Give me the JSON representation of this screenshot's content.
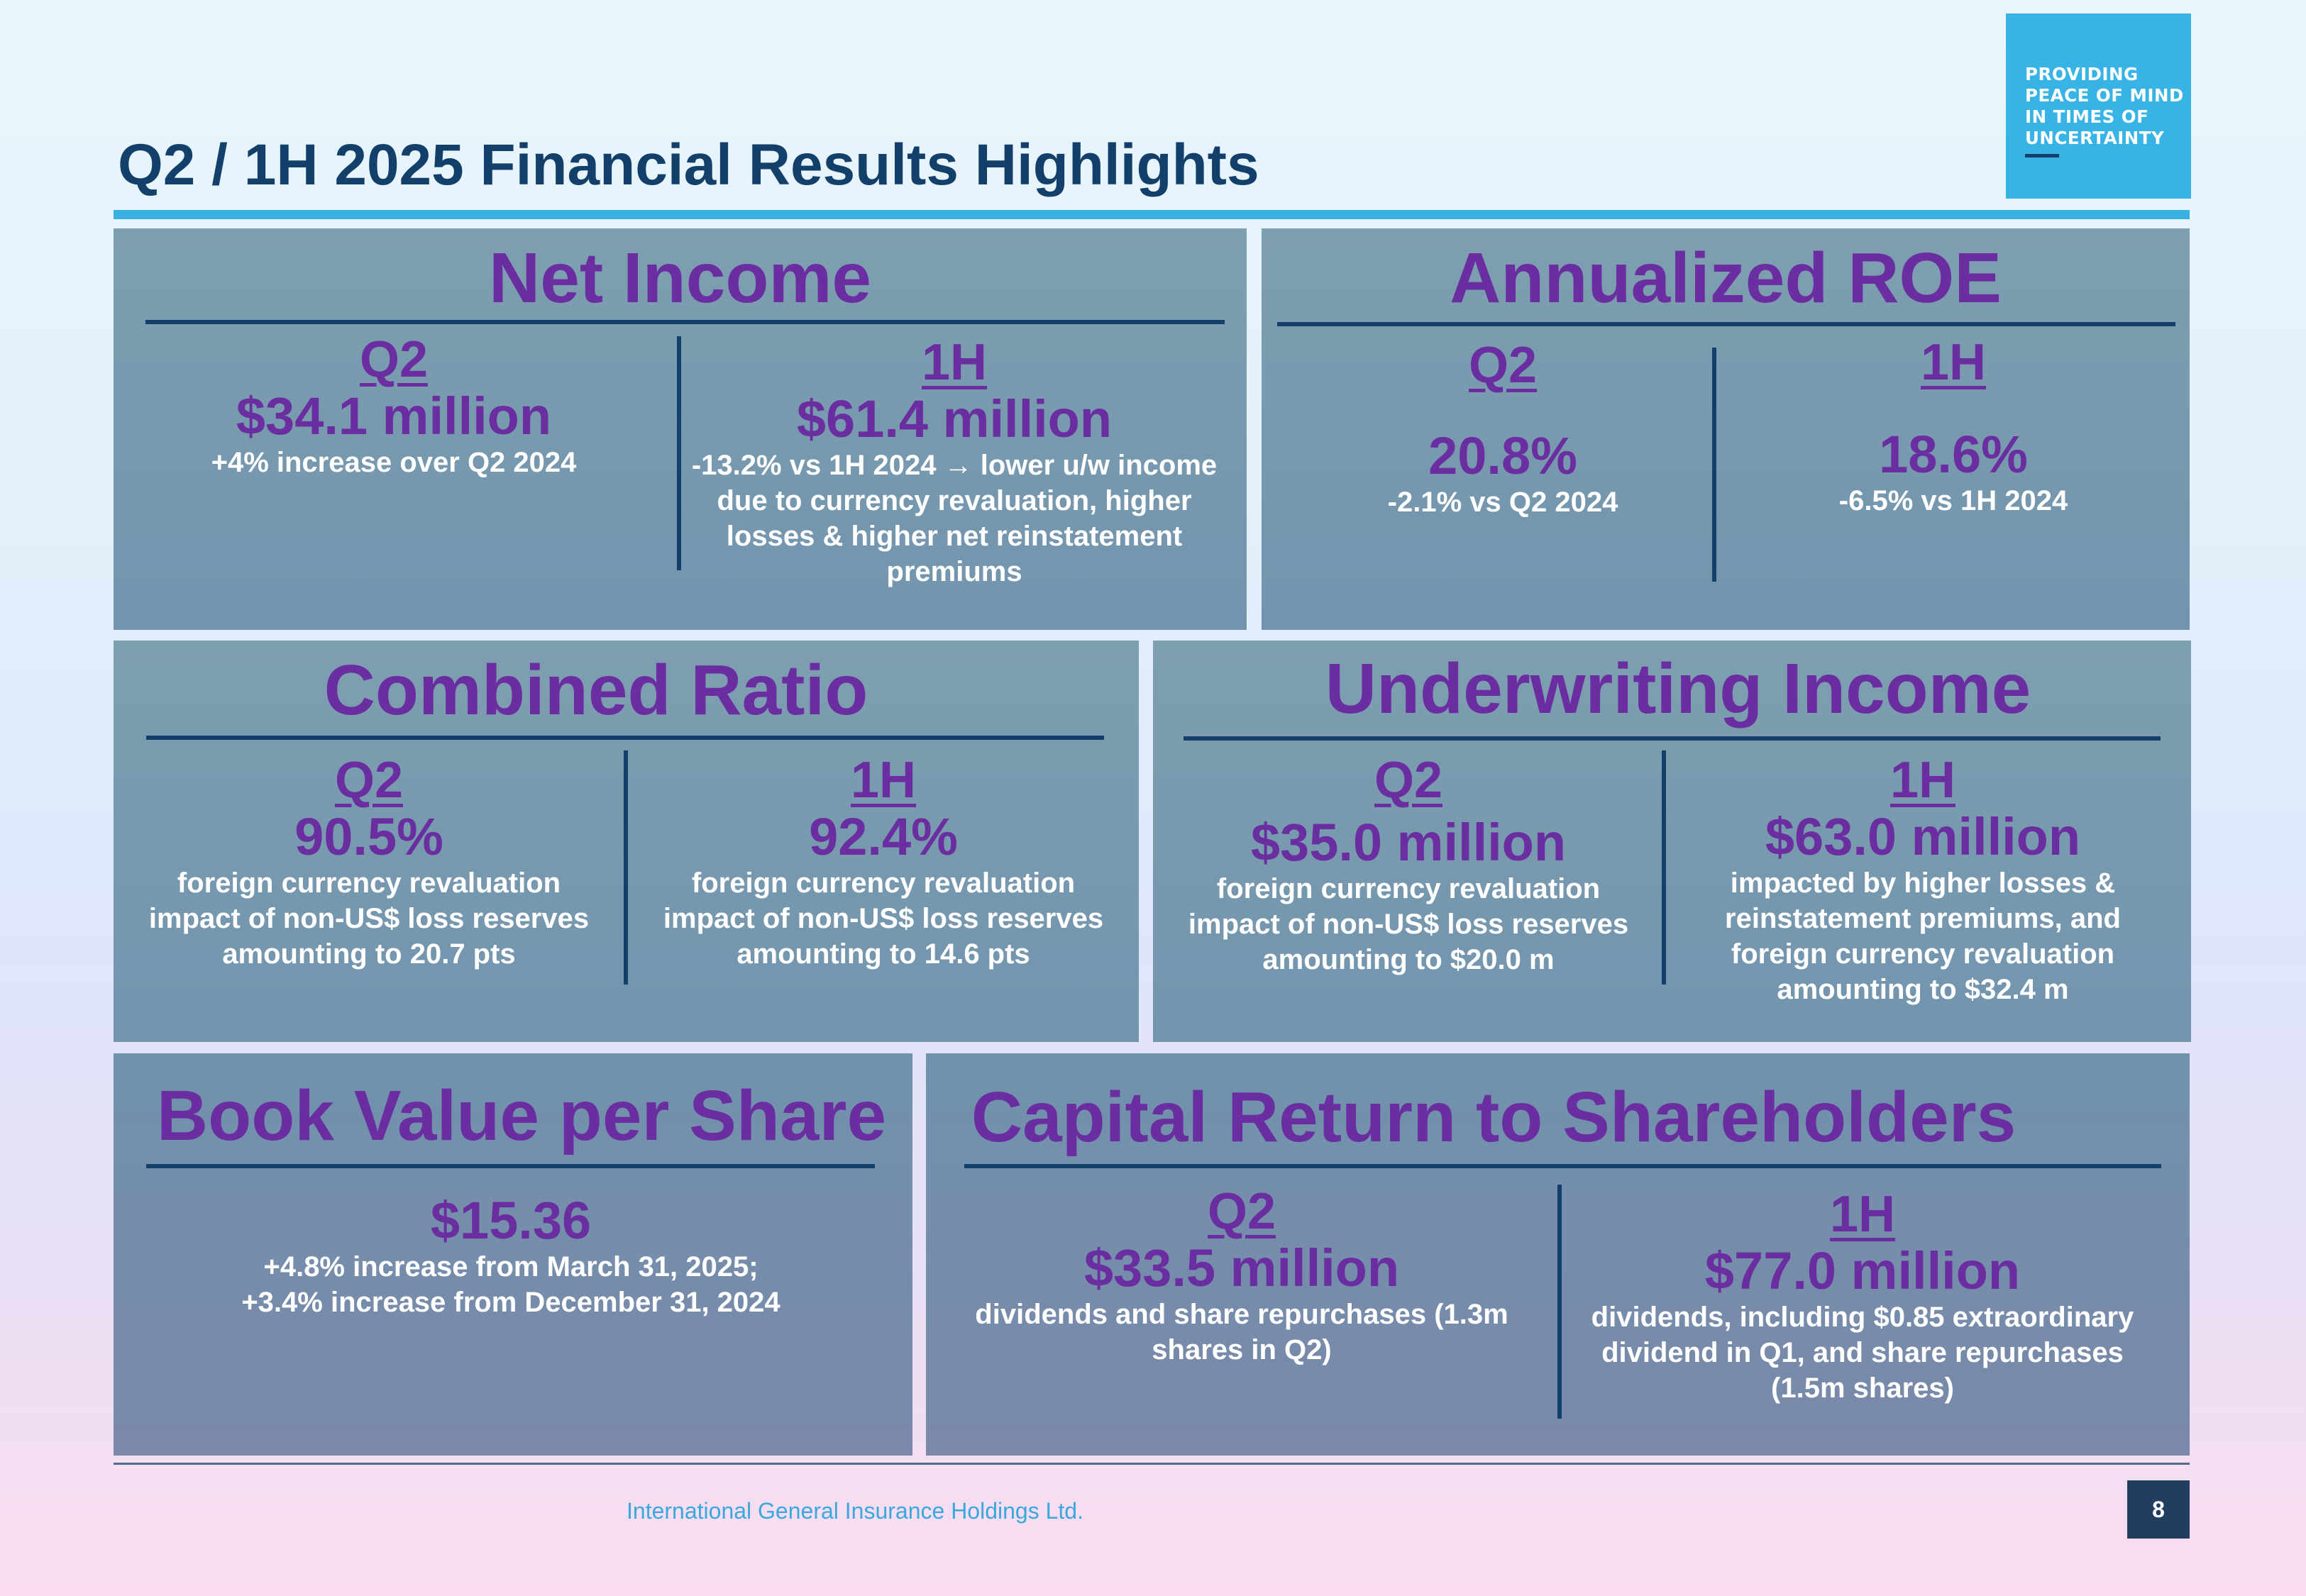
{
  "header": {
    "title": "Q2 / 1H 2025 Financial Results Highlights",
    "logo_lines": [
      "PROVIDING",
      "PEACE OF MIND",
      "IN TIMES OF",
      "UNCERTAINTY"
    ]
  },
  "net_income": {
    "heading": "Net Income",
    "q2": {
      "label": "Q2",
      "value": "$34.1 million",
      "note": "+4% increase over Q2 2024"
    },
    "h1": {
      "label": "1H",
      "value": "$61.4 million",
      "note": "-13.2% vs 1H 2024 → lower u/w income due to currency revaluation, higher losses & higher net reinstatement premiums"
    }
  },
  "roe": {
    "heading": "Annualized ROE",
    "q2": {
      "label": "Q2",
      "value": "20.8%",
      "note": "-2.1% vs Q2 2024"
    },
    "h1": {
      "label": "1H",
      "value": "18.6%",
      "note": "-6.5% vs 1H 2024"
    }
  },
  "combined_ratio": {
    "heading": "Combined Ratio",
    "q2": {
      "label": "Q2",
      "value": "90.5%",
      "note": "foreign currency revaluation impact of non-US$ loss reserves amounting to 20.7 pts"
    },
    "h1": {
      "label": "1H",
      "value": "92.4%",
      "note": "foreign currency revaluation impact of non-US$ loss reserves amounting to 14.6 pts"
    }
  },
  "underwriting_income": {
    "heading": "Underwriting Income",
    "q2": {
      "label": "Q2",
      "value": "$35.0 million",
      "note": "foreign currency revaluation impact of non-US$ loss reserves amounting to $20.0 m"
    },
    "h1": {
      "label": "1H",
      "value": "$63.0 million",
      "note": "impacted by higher losses & reinstatement premiums, and foreign currency revaluation amounting to $32.4 m"
    }
  },
  "book_value": {
    "heading": "Book Value per Share",
    "value": "$15.36",
    "note_1": "+4.8% increase from March 31, 2025;",
    "note_2": "+3.4% increase from December 31, 2024"
  },
  "capital_return": {
    "heading": "Capital Return to Shareholders",
    "q2": {
      "label": "Q2",
      "value": "$33.5 million",
      "note": "dividends and share repurchases (1.3m shares in Q2)"
    },
    "h1": {
      "label": "1H",
      "value": "$77.0 million",
      "note": "dividends, including $0.85 extraordinary dividend in Q1, and share repurchases (1.5m shares)"
    }
  },
  "footer": {
    "company": "International General Insurance Holdings Ltd.",
    "page_number": "8"
  },
  "colors": {
    "heading_purple": "#6a2ea0",
    "title_navy": "#12406a",
    "accent_blue": "#38b3e6",
    "panel_blue": "#7a9bb0"
  }
}
